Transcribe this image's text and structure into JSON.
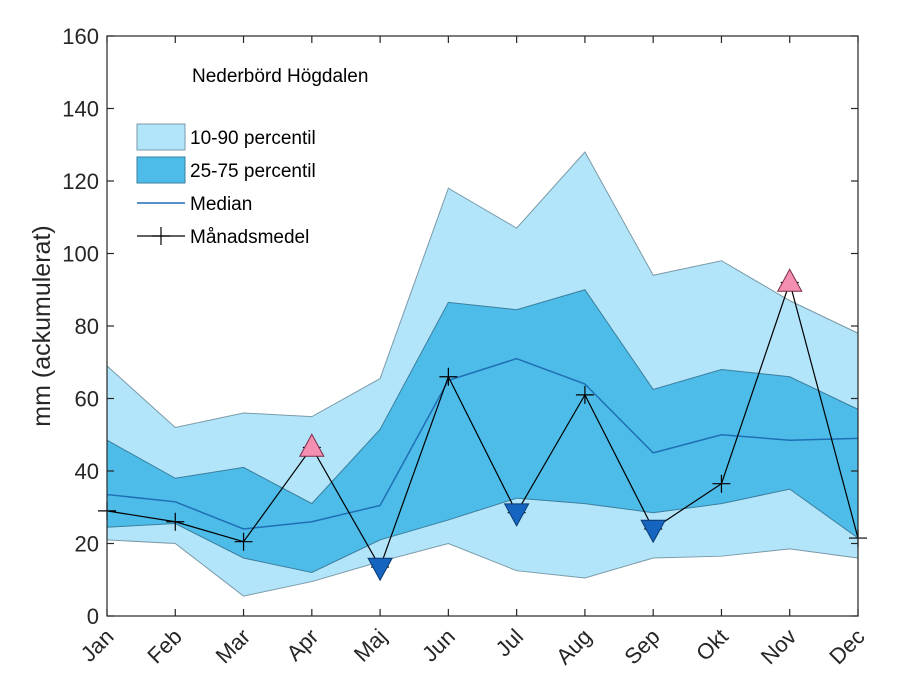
{
  "chart_data": {
    "type": "line",
    "title": "Nederbörd Högdalen",
    "xlabel": "",
    "ylabel": "mm (ackumulerat)",
    "categories": [
      "Jan",
      "Feb",
      "Mar",
      "Apr",
      "Maj",
      "Jun",
      "Jul",
      "Aug",
      "Sep",
      "Okt",
      "Nov",
      "Dec"
    ],
    "ylim": [
      0,
      160
    ],
    "yticks": [
      "0",
      "20",
      "40",
      "60",
      "80",
      "100",
      "120",
      "140",
      "160"
    ],
    "grid": false,
    "legend_position": "top-left",
    "bands": [
      {
        "name": "10-90 percentil",
        "color": "#b3e5fa",
        "lower": [
          21,
          20,
          5.5,
          9.5,
          15,
          20,
          12.5,
          10.5,
          16,
          16.5,
          18.5,
          16
        ],
        "upper": [
          69,
          52,
          56,
          55,
          65.5,
          118,
          107,
          128,
          94,
          98,
          87,
          78
        ]
      },
      {
        "name": "25-75 percentil",
        "color": "#4dbce9",
        "lower": [
          24.5,
          25.5,
          16,
          12,
          21,
          26.5,
          32.5,
          31,
          28.5,
          31,
          35,
          21.5
        ],
        "upper": [
          48.5,
          38,
          41,
          31,
          51.5,
          86.5,
          84.5,
          90,
          62.5,
          68,
          66,
          57
        ]
      }
    ],
    "series": [
      {
        "name": "Median",
        "color": "#1f6fb5",
        "values": [
          33.5,
          31.5,
          24,
          26,
          30.5,
          65,
          71,
          64,
          45,
          50,
          48.5,
          49
        ]
      },
      {
        "name": "Månadsmedel",
        "color": "#000000",
        "values": [
          29,
          26,
          20.5,
          46.5,
          13.5,
          66,
          28.5,
          61,
          24,
          36.5,
          92,
          21.5
        ]
      }
    ],
    "markers": {
      "above": {
        "color": "#f48fb1",
        "indices": [
          3,
          10
        ]
      },
      "below": {
        "color": "#1565c0",
        "indices": [
          4,
          6,
          8
        ]
      }
    }
  }
}
